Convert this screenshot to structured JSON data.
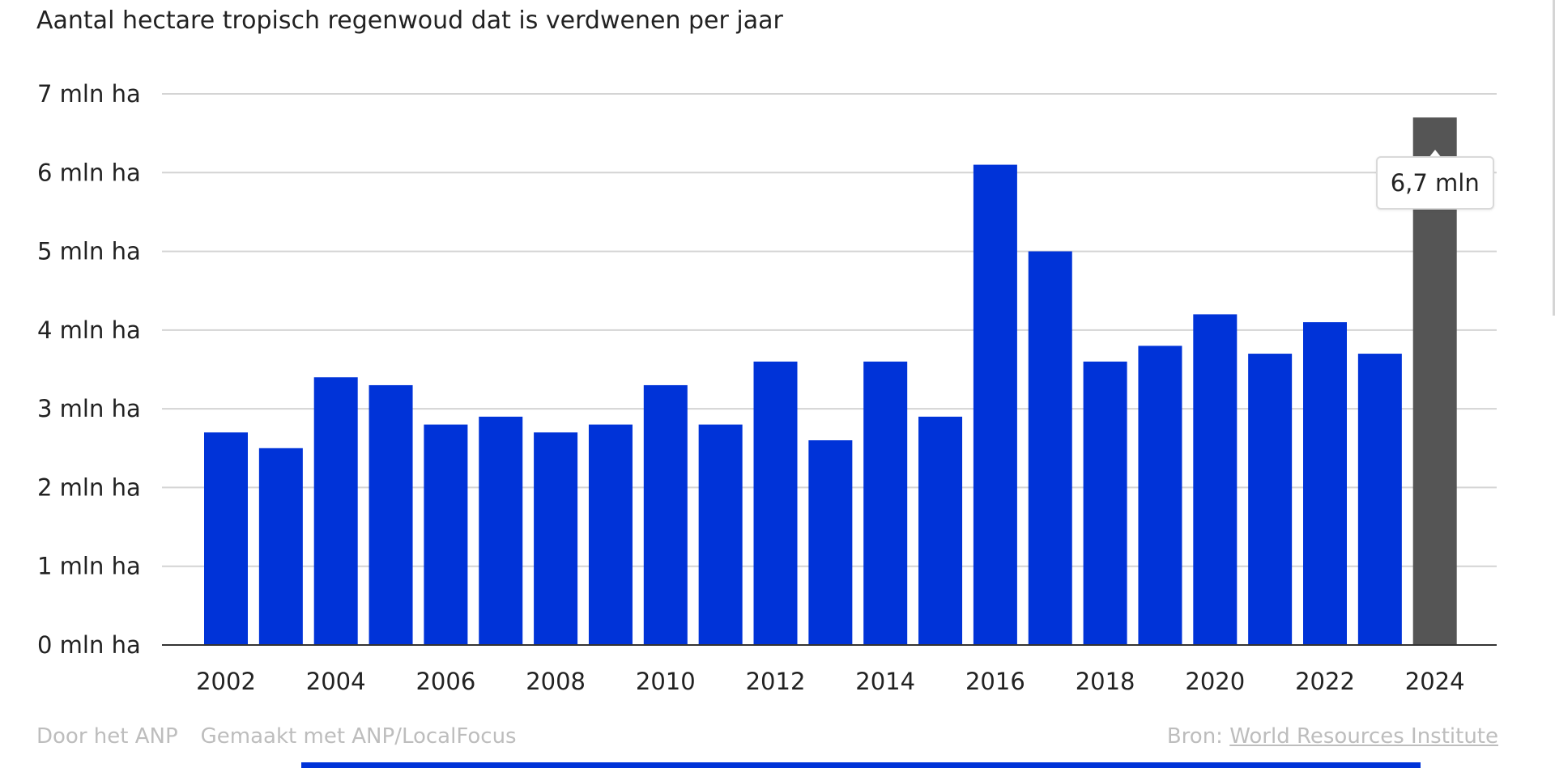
{
  "chart_data": {
    "type": "bar",
    "title": "Aantal hectare tropisch regenwoud dat is verdwenen per jaar",
    "xlabel": "",
    "ylabel": "",
    "categories": [
      "2002",
      "2003",
      "2004",
      "2005",
      "2006",
      "2007",
      "2008",
      "2009",
      "2010",
      "2011",
      "2012",
      "2013",
      "2014",
      "2015",
      "2016",
      "2017",
      "2018",
      "2019",
      "2020",
      "2021",
      "2022",
      "2023",
      "2024"
    ],
    "values": [
      2.7,
      2.5,
      3.4,
      3.3,
      2.8,
      2.9,
      2.7,
      2.8,
      3.3,
      2.8,
      3.6,
      2.6,
      3.6,
      2.9,
      6.1,
      5.0,
      3.6,
      3.8,
      4.2,
      3.7,
      4.1,
      3.7,
      6.7
    ],
    "ylim": [
      0,
      7
    ],
    "yticks": [
      0,
      1,
      2,
      3,
      4,
      5,
      6,
      7
    ],
    "ytick_labels": [
      "0 mln ha",
      "1 mln ha",
      "2 mln ha",
      "3 mln ha",
      "4 mln ha",
      "5 mln ha",
      "6 mln ha",
      "7 mln ha"
    ],
    "xtick_labels_shown": [
      "2002",
      "2004",
      "2006",
      "2008",
      "2010",
      "2012",
      "2014",
      "2016",
      "2018",
      "2020",
      "2022",
      "2024"
    ],
    "grid": true,
    "highlighted_category": "2024",
    "tooltip": {
      "category": "2024",
      "label": "6,7 mln"
    },
    "colors": {
      "bar": "#0033d8",
      "highlight": "#555555",
      "grid": "#d4d4d4",
      "axis": "#333333"
    }
  },
  "footer": {
    "author": "Door het ANP",
    "made_with": "Gemaakt met ANP/LocalFocus",
    "source_prefix": "Bron:",
    "source_link": "World Resources Institute"
  },
  "colors": {
    "footer_text": "#bdbdbd",
    "bottom_bar": "#0033d8"
  }
}
